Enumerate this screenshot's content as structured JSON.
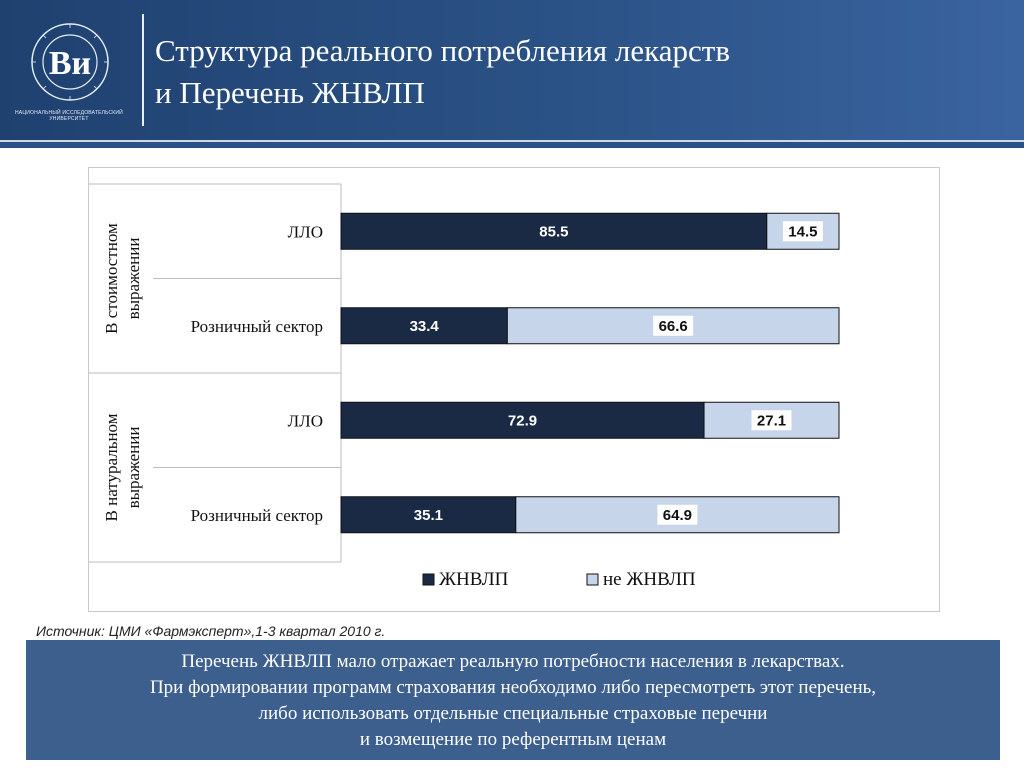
{
  "header": {
    "title_line1": "Структура реального потребления  лекарств",
    "title_line2": "и Перечень ЖНВЛП",
    "logo_caption_line1": "НАЦИОНАЛЬНЫЙ ИССЛЕДОВАТЕЛЬСКИЙ",
    "logo_caption_line2": "УНИВЕРСИТЕТ"
  },
  "colors": {
    "header_bg": "#2b5286",
    "series_zhnvlp": "#1a2a45",
    "series_not_zhnvlp": "#c6d5ea",
    "note_bg": "#3c5f8d"
  },
  "chart_data": {
    "type": "bar",
    "orientation": "horizontal",
    "stacked": "percent",
    "groups": [
      {
        "label": "В стоимостном выражении",
        "categories": [
          "ЛЛО",
          "Розничный сектор"
        ]
      },
      {
        "label": "В натуральном выражении",
        "categories": [
          "ЛЛО",
          "Розничный сектор"
        ]
      }
    ],
    "categories": [
      "ЛЛО",
      "Розничный сектор",
      "ЛЛО",
      "Розничный сектор"
    ],
    "series": [
      {
        "name": "ЖНВЛП",
        "values": [
          85.5,
          33.4,
          72.9,
          35.1
        ],
        "color": "#1a2a45"
      },
      {
        "name": "не ЖНВЛП",
        "values": [
          14.5,
          66.6,
          27.1,
          64.9
        ],
        "color": "#c6d5ea"
      }
    ],
    "xlim": [
      0,
      100
    ],
    "grid": false,
    "legend": "bottom"
  },
  "source": "Источник: ЦМИ «Фармэксперт»,1-3 квартал 2010 г.",
  "note": {
    "lines": [
      "Перечень ЖНВЛП мало отражает реальную потребности населения в лекарствах.",
      "При формировании программ страхования необходимо либо пересмотреть этот перечень,",
      "либо использовать отдельные  специальные страховые перечни",
      "и возмещение по референтным ценам"
    ]
  }
}
